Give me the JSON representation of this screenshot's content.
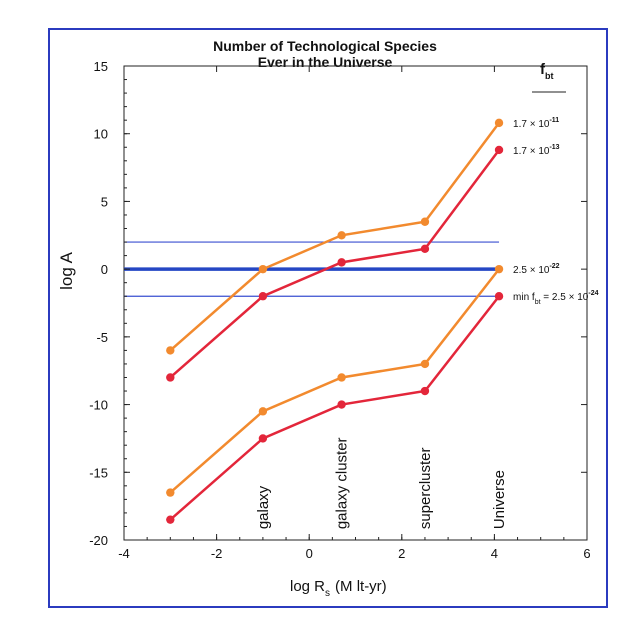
{
  "chart_data": {
    "type": "line",
    "title": "Number of Technological Species",
    "subtitle": "Ever in the Universe",
    "ylabel": "log A",
    "xlabel_main": "log R",
    "xlabel_sub": "s",
    "xlabel_rest": "(M lt-yr)",
    "xlim": [
      -4,
      6
    ],
    "ylim": [
      -20,
      15
    ],
    "x_ticks": [
      -4,
      -2,
      0,
      2,
      4,
      6
    ],
    "y_ticks": [
      -20,
      -15,
      -10,
      -5,
      0,
      5,
      10,
      15
    ],
    "x_tick_labels": [
      "-4",
      "-2",
      "0",
      "2",
      "4",
      "6"
    ],
    "y_tick_labels": [
      "-20",
      "-15",
      "-10",
      "-5",
      "0",
      "5",
      "10",
      "15"
    ],
    "x": [
      -3,
      -1,
      0.7,
      2.5,
      4.1
    ],
    "scale_labels": [
      "galaxy",
      "galaxy cluster",
      "supercluster",
      "Universe"
    ],
    "scale_x": [
      -1,
      0.7,
      2.5,
      4.1
    ],
    "legend_title": "f",
    "legend_title_sub": "bt",
    "series": [
      {
        "name": "1.7 × 10^-11",
        "color": "#f28a2e",
        "values": [
          -6,
          0,
          2.5,
          3.5,
          10.8
        ]
      },
      {
        "name": "1.7 × 10^-13",
        "color": "#e3263a",
        "values": [
          -8,
          -2,
          0.5,
          1.5,
          8.8
        ]
      },
      {
        "name": "2.5 × 10^-22",
        "color": "#f28a2e",
        "values": [
          -16.5,
          -10.5,
          -8,
          -7,
          0
        ]
      },
      {
        "name": "min f_bt = 2.5 × 10^-24",
        "color": "#e3263a",
        "values": [
          -18.5,
          -12.5,
          -10,
          -9,
          -2
        ]
      }
    ],
    "hlines": [
      {
        "y": 2,
        "style": "thin",
        "color": "#3a4fd1"
      },
      {
        "y": 0,
        "style": "thick",
        "color": "#2547c4"
      },
      {
        "y": -2,
        "style": "thin",
        "color": "#3a4fd1"
      }
    ],
    "legend": [
      {
        "base": "1.7 × 10",
        "exp": "-11"
      },
      {
        "base": "1.7 × 10",
        "exp": "-13"
      },
      {
        "base": "2.5 × 10",
        "exp": "-22"
      },
      {
        "prefix": "min f",
        "prefix_sub": "bt",
        "base": " = 2.5 × 10",
        "exp": "-24"
      }
    ]
  }
}
